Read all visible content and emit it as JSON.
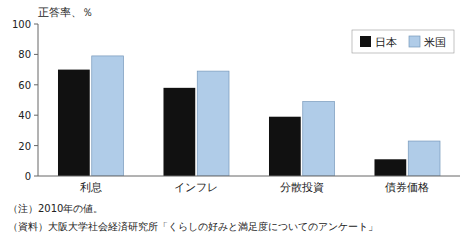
{
  "chart_data": {
    "type": "bar",
    "ylabel": "正答率、％",
    "categories": [
      "利息",
      "インフレ",
      "分散投資",
      "債券価格"
    ],
    "series": [
      {
        "name": "日本",
        "color": "#111111",
        "values": [
          70,
          58,
          39,
          11
        ]
      },
      {
        "name": "米国",
        "color": "#b0cce8",
        "values": [
          79,
          69,
          49,
          23
        ]
      }
    ],
    "ylim": [
      0,
      100
    ],
    "yticks": [
      0,
      20,
      40,
      60,
      80,
      100
    ],
    "grid": false,
    "legend": "upper right",
    "annotations": [
      "（注）2010年の値。",
      "（資料）大阪大学社会経済研究所「くらしの好みと満足度についてのアンケート」"
    ]
  }
}
